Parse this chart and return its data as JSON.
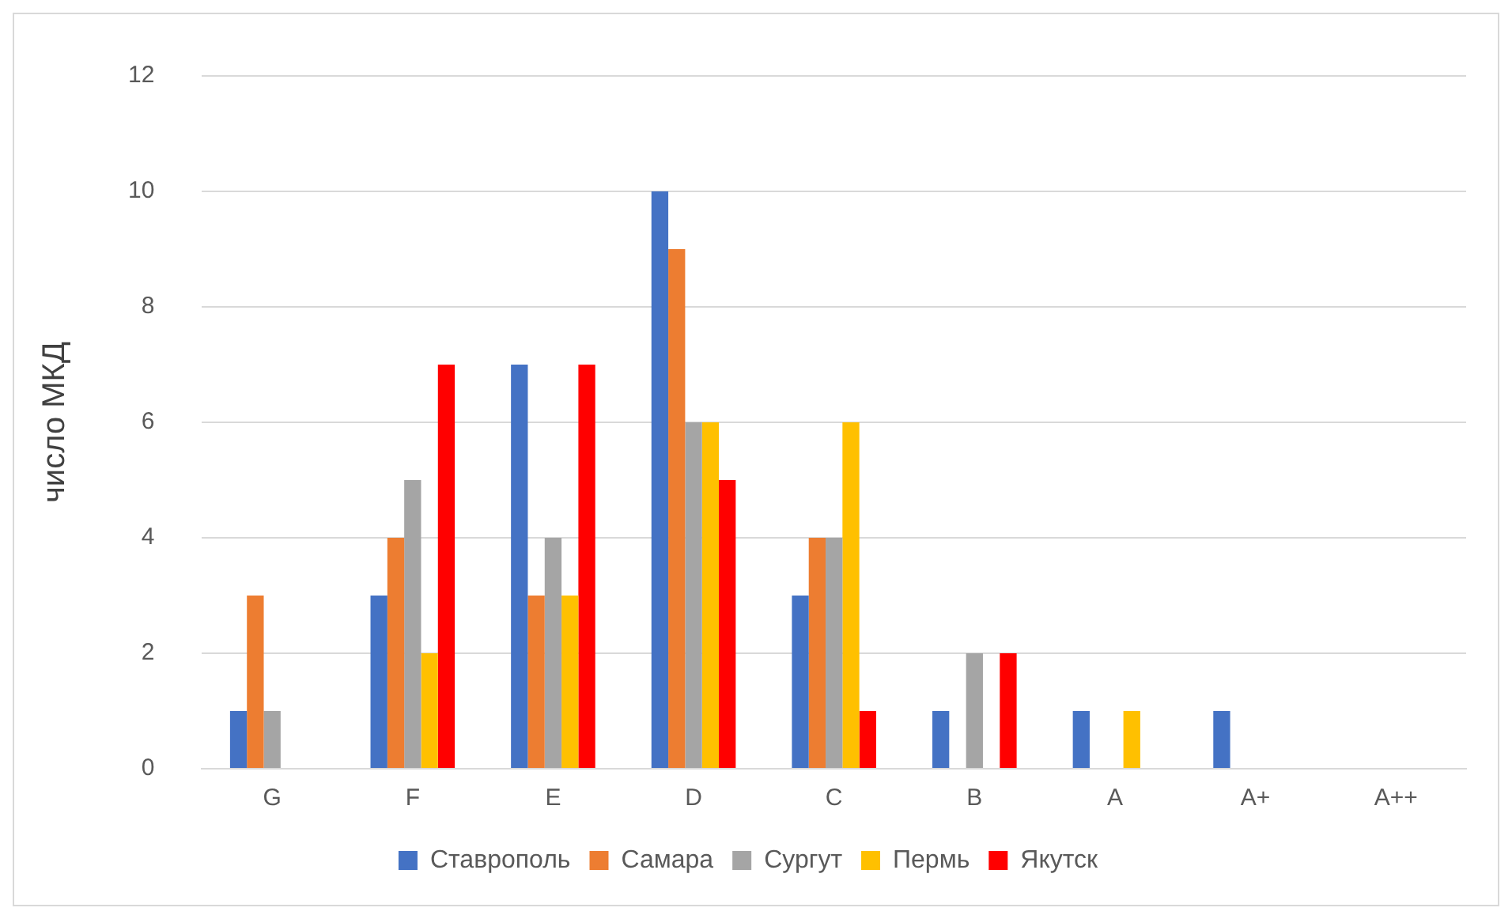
{
  "chart_data": {
    "type": "bar",
    "ylabel": "число МКД",
    "categories": [
      "G",
      "F",
      "E",
      "D",
      "C",
      "B",
      "A",
      "A+",
      "A++"
    ],
    "series": [
      {
        "name": "Ставрополь",
        "color": "#4472c4",
        "values": [
          1,
          3,
          7,
          10,
          3,
          1,
          1,
          1,
          0
        ]
      },
      {
        "name": "Самара",
        "color": "#ed7d31",
        "values": [
          3,
          4,
          3,
          9,
          4,
          0,
          0,
          0,
          0
        ]
      },
      {
        "name": "Сургут",
        "color": "#a5a5a5",
        "values": [
          1,
          5,
          4,
          6,
          4,
          2,
          0,
          0,
          0
        ]
      },
      {
        "name": "Пермь",
        "color": "#ffc000",
        "values": [
          0,
          2,
          3,
          6,
          6,
          0,
          1,
          0,
          0
        ]
      },
      {
        "name": "Якутск",
        "color": "#ff0000",
        "values": [
          0,
          7,
          7,
          5,
          1,
          2,
          0,
          0,
          0
        ]
      }
    ],
    "ylim": [
      0,
      12
    ],
    "yticks": [
      0,
      2,
      4,
      6,
      8,
      10,
      12
    ],
    "grid": "y",
    "legend": "bottom"
  }
}
